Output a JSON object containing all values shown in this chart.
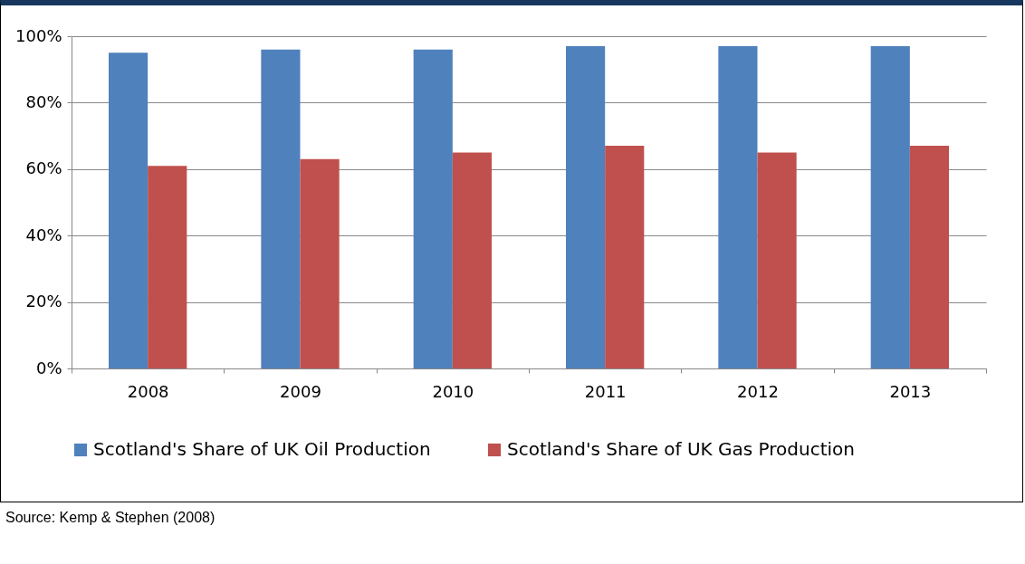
{
  "chart_data": {
    "type": "bar",
    "categories": [
      "2008",
      "2009",
      "2010",
      "2011",
      "2012",
      "2013"
    ],
    "series": [
      {
        "name": "Scotland's Share of UK Oil Production",
        "color": "#4f81bd",
        "values": [
          95,
          96,
          96,
          97,
          97,
          97
        ]
      },
      {
        "name": "Scotland's Share of UK Gas Production",
        "color": "#c0504d",
        "values": [
          61,
          63,
          65,
          67,
          65,
          67
        ]
      }
    ],
    "ylim": [
      0,
      100
    ],
    "yticks": [
      {
        "value": 0,
        "label": "0%"
      },
      {
        "value": 20,
        "label": "20%"
      },
      {
        "value": 40,
        "label": "40%"
      },
      {
        "value": 60,
        "label": "60%"
      },
      {
        "value": 80,
        "label": "80%"
      },
      {
        "value": 100,
        "label": "100%"
      }
    ],
    "grid": "y",
    "legend": "bottom",
    "annotations": [
      "Source: Kemp & Stephen (2008)"
    ]
  }
}
